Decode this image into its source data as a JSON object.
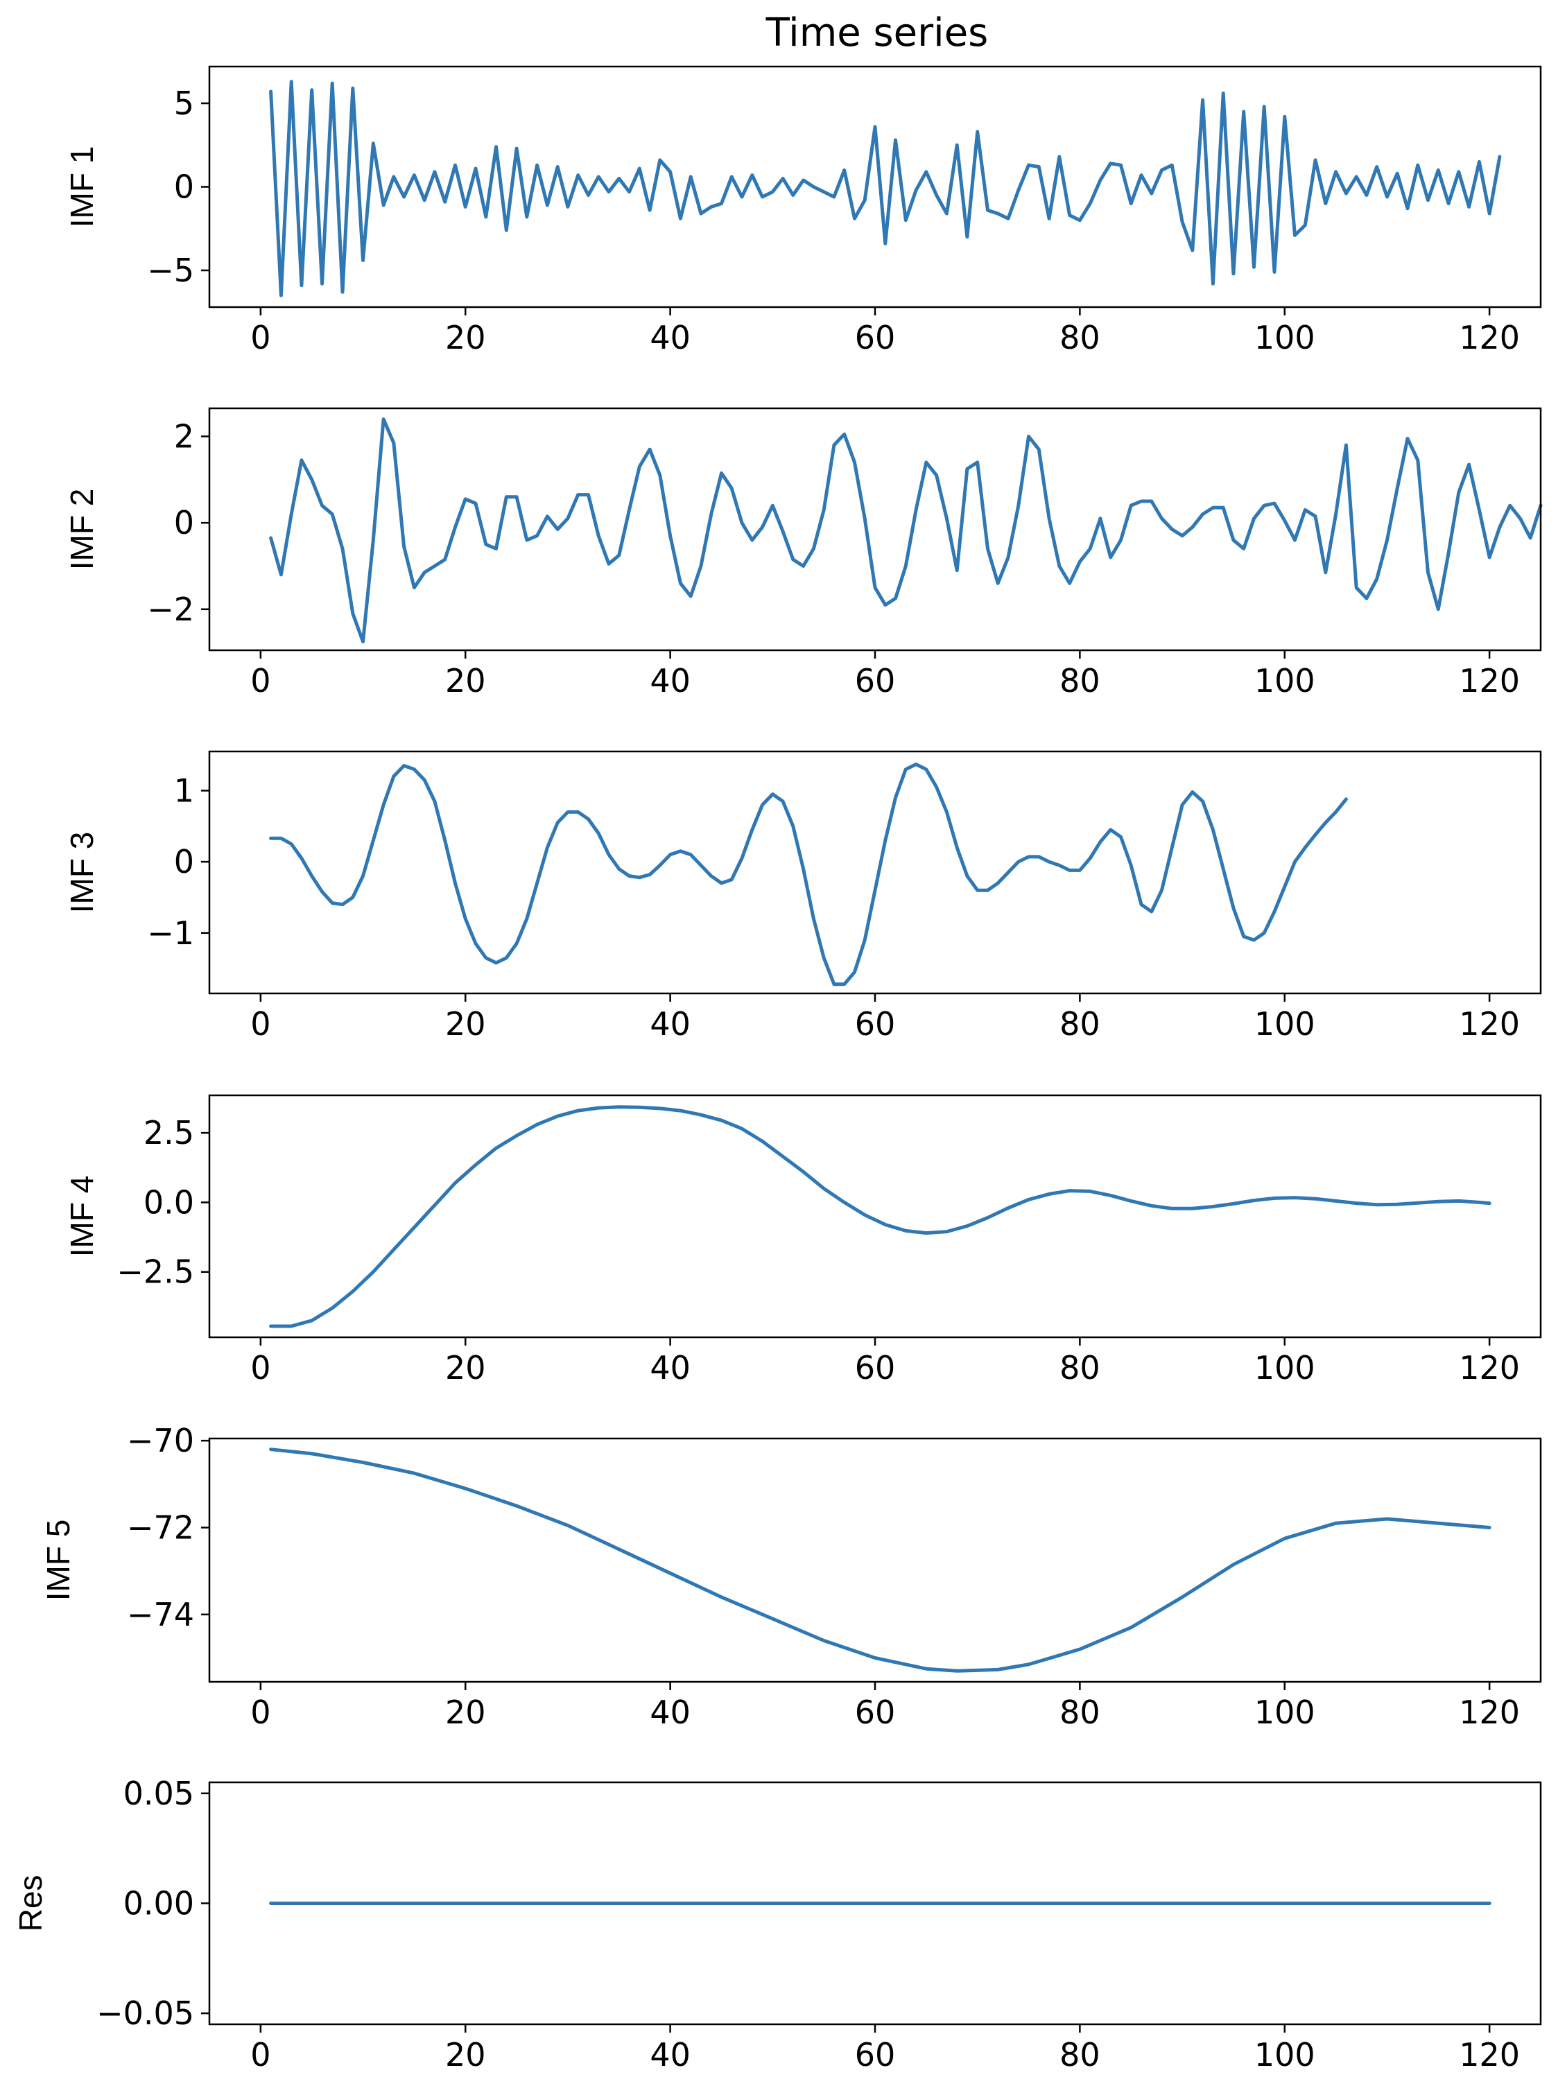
{
  "figure": {
    "title": "Time series",
    "line_color": "#2f78b4"
  },
  "chart_data": [
    {
      "type": "line",
      "ylabel": "IMF 1",
      "xlim": [
        -5,
        125
      ],
      "ylim": [
        -7.2,
        7.2
      ],
      "xticks": [
        0,
        20,
        40,
        60,
        80,
        100,
        120
      ],
      "xtick_labels": [
        "0",
        "20",
        "40",
        "60",
        "80",
        "100",
        "120"
      ],
      "yticks": [
        5,
        0,
        -5
      ],
      "ytick_labels": [
        "5",
        "0",
        "−5"
      ],
      "x_start": 1,
      "values": [
        5.7,
        -6.5,
        6.3,
        -5.9,
        5.8,
        -5.8,
        6.2,
        -6.3,
        5.9,
        -4.4,
        2.6,
        -1.1,
        0.6,
        -0.6,
        0.7,
        -0.8,
        0.9,
        -0.9,
        1.3,
        -1.2,
        1.1,
        -1.8,
        2.4,
        -2.6,
        2.3,
        -1.8,
        1.3,
        -1.1,
        1.2,
        -1.2,
        0.7,
        -0.5,
        0.6,
        -0.3,
        0.5,
        -0.3,
        1.1,
        -1.4,
        1.6,
        0.9,
        -1.9,
        0.6,
        -1.6,
        -1.2,
        -1.0,
        0.6,
        -0.6,
        0.7,
        -0.6,
        -0.3,
        0.5,
        -0.5,
        0.4,
        0.0,
        -0.3,
        -0.6,
        1.0,
        -1.9,
        -0.8,
        3.6,
        -3.4,
        2.8,
        -2.0,
        -0.2,
        0.9,
        -0.5,
        -1.6,
        2.5,
        -3.0,
        3.3,
        -1.4,
        -1.6,
        -1.9,
        -0.2,
        1.3,
        1.2,
        -1.9,
        1.8,
        -1.7,
        -2.0,
        -1.0,
        0.4,
        1.4,
        1.3,
        -1.0,
        0.7,
        -0.4,
        1.0,
        1.3,
        -2.1,
        -3.8,
        5.2,
        -5.8,
        5.6,
        -5.2,
        4.5,
        -4.8,
        4.8,
        -5.1,
        4.2,
        -2.9,
        -2.3,
        1.6,
        -1.0,
        0.9,
        -0.4,
        0.6,
        -0.5,
        1.2,
        -0.6,
        0.8,
        -1.3,
        1.3,
        -0.8,
        1.0,
        -1.0,
        0.9,
        -1.2,
        1.5,
        -1.6,
        1.8
      ]
    },
    {
      "type": "line",
      "ylabel": "IMF 2",
      "xlim": [
        -5,
        125
      ],
      "ylim": [
        -2.95,
        2.65
      ],
      "xticks": [
        0,
        20,
        40,
        60,
        80,
        100,
        120
      ],
      "xtick_labels": [
        "0",
        "20",
        "40",
        "60",
        "80",
        "100",
        "120"
      ],
      "yticks": [
        2,
        0,
        -2
      ],
      "ytick_labels": [
        "2",
        "0",
        "−2"
      ],
      "x_start": 1,
      "values": [
        -0.35,
        -1.2,
        0.2,
        1.45,
        1.0,
        0.4,
        0.2,
        -0.6,
        -2.1,
        -2.75,
        -0.4,
        2.4,
        1.85,
        -0.55,
        -1.5,
        -1.15,
        -1.0,
        -0.85,
        -0.1,
        0.55,
        0.45,
        -0.5,
        -0.6,
        0.6,
        0.6,
        -0.4,
        -0.3,
        0.15,
        -0.15,
        0.1,
        0.65,
        0.65,
        -0.3,
        -0.95,
        -0.75,
        0.3,
        1.3,
        1.7,
        1.1,
        -0.3,
        -1.4,
        -1.7,
        -1.0,
        0.2,
        1.15,
        0.8,
        0.0,
        -0.4,
        -0.1,
        0.4,
        -0.2,
        -0.85,
        -1.0,
        -0.6,
        0.3,
        1.8,
        2.05,
        1.4,
        0.1,
        -1.5,
        -1.9,
        -1.75,
        -1.0,
        0.3,
        1.4,
        1.1,
        0.1,
        -1.1,
        1.25,
        1.4,
        -0.6,
        -1.4,
        -0.8,
        0.4,
        2.0,
        1.7,
        0.1,
        -1.0,
        -1.4,
        -0.9,
        -0.6,
        0.1,
        -0.8,
        -0.4,
        0.4,
        0.5,
        0.5,
        0.1,
        -0.15,
        -0.3,
        -0.1,
        0.2,
        0.35,
        0.35,
        -0.4,
        -0.6,
        0.1,
        0.4,
        0.45,
        0.05,
        -0.4,
        0.3,
        0.15,
        -1.15,
        0.2,
        1.8,
        -1.5,
        -1.75,
        -1.3,
        -0.4,
        0.8,
        1.95,
        1.45,
        -1.15,
        -2.0,
        -0.7,
        0.7,
        1.35,
        0.3,
        -0.8,
        -0.1,
        0.4,
        0.1,
        -0.35,
        0.4
      ]
    },
    {
      "type": "line",
      "ylabel": "IMF 3",
      "xlim": [
        -5,
        125
      ],
      "ylim": [
        -1.85,
        1.55
      ],
      "xticks": [
        0,
        20,
        40,
        60,
        80,
        100,
        120
      ],
      "xtick_labels": [
        "0",
        "20",
        "40",
        "60",
        "80",
        "100",
        "120"
      ],
      "yticks": [
        1,
        0,
        -1
      ],
      "ytick_labels": [
        "1",
        "0",
        "−1"
      ],
      "x_start": 1,
      "values": [
        0.33,
        0.33,
        0.25,
        0.05,
        -0.2,
        -0.42,
        -0.58,
        -0.6,
        -0.5,
        -0.2,
        0.3,
        0.8,
        1.2,
        1.35,
        1.3,
        1.15,
        0.85,
        0.3,
        -0.3,
        -0.8,
        -1.15,
        -1.35,
        -1.42,
        -1.35,
        -1.15,
        -0.8,
        -0.3,
        0.2,
        0.55,
        0.7,
        0.7,
        0.6,
        0.4,
        0.1,
        -0.1,
        -0.2,
        -0.22,
        -0.18,
        -0.05,
        0.1,
        0.15,
        0.1,
        -0.05,
        -0.2,
        -0.3,
        -0.25,
        0.05,
        0.45,
        0.8,
        0.95,
        0.85,
        0.5,
        -0.1,
        -0.8,
        -1.35,
        -1.72,
        -1.72,
        -1.55,
        -1.1,
        -0.4,
        0.3,
        0.9,
        1.3,
        1.37,
        1.3,
        1.05,
        0.7,
        0.2,
        -0.2,
        -0.4,
        -0.4,
        -0.3,
        -0.15,
        0.0,
        0.07,
        0.07,
        0.0,
        -0.05,
        -0.12,
        -0.12,
        0.05,
        0.28,
        0.45,
        0.35,
        -0.05,
        -0.6,
        -0.7,
        -0.4,
        0.2,
        0.8,
        0.98,
        0.85,
        0.45,
        -0.1,
        -0.65,
        -1.05,
        -1.1,
        -1.0,
        -0.7,
        -0.35,
        0.0,
        0.2,
        0.38,
        0.55,
        0.7,
        0.88
      ]
    },
    {
      "type": "line",
      "ylabel": "IMF 4",
      "xlim": [
        -5,
        125
      ],
      "ylim": [
        -4.85,
        3.85
      ],
      "xticks": [
        0,
        20,
        40,
        60,
        80,
        100,
        120
      ],
      "xtick_labels": [
        "0",
        "20",
        "40",
        "60",
        "80",
        "100",
        "120"
      ],
      "yticks": [
        2.5,
        0.0,
        -2.5
      ],
      "ytick_labels": [
        "2.5",
        "0.0",
        "−2.5"
      ],
      "points": [
        [
          1,
          -4.45
        ],
        [
          3,
          -4.45
        ],
        [
          5,
          -4.25
        ],
        [
          7,
          -3.8
        ],
        [
          9,
          -3.2
        ],
        [
          11,
          -2.5
        ],
        [
          13,
          -1.7
        ],
        [
          15,
          -0.9
        ],
        [
          17,
          -0.1
        ],
        [
          19,
          0.7
        ],
        [
          21,
          1.35
        ],
        [
          23,
          1.95
        ],
        [
          25,
          2.4
        ],
        [
          27,
          2.8
        ],
        [
          29,
          3.1
        ],
        [
          31,
          3.3
        ],
        [
          33,
          3.4
        ],
        [
          35,
          3.43
        ],
        [
          37,
          3.42
        ],
        [
          39,
          3.38
        ],
        [
          41,
          3.3
        ],
        [
          43,
          3.15
        ],
        [
          45,
          2.95
        ],
        [
          47,
          2.65
        ],
        [
          49,
          2.2
        ],
        [
          51,
          1.65
        ],
        [
          53,
          1.1
        ],
        [
          55,
          0.5
        ],
        [
          57,
          0.0
        ],
        [
          59,
          -0.45
        ],
        [
          61,
          -0.8
        ],
        [
          63,
          -1.02
        ],
        [
          65,
          -1.1
        ],
        [
          67,
          -1.05
        ],
        [
          69,
          -0.85
        ],
        [
          71,
          -0.55
        ],
        [
          73,
          -0.2
        ],
        [
          75,
          0.1
        ],
        [
          77,
          0.3
        ],
        [
          79,
          0.42
        ],
        [
          81,
          0.4
        ],
        [
          83,
          0.25
        ],
        [
          85,
          0.05
        ],
        [
          87,
          -0.12
        ],
        [
          89,
          -0.22
        ],
        [
          91,
          -0.22
        ],
        [
          93,
          -0.15
        ],
        [
          95,
          -0.05
        ],
        [
          97,
          0.07
        ],
        [
          99,
          0.15
        ],
        [
          101,
          0.17
        ],
        [
          103,
          0.13
        ],
        [
          105,
          0.05
        ],
        [
          107,
          -0.03
        ],
        [
          109,
          -0.08
        ],
        [
          111,
          -0.07
        ],
        [
          113,
          -0.02
        ],
        [
          115,
          0.03
        ],
        [
          117,
          0.05
        ],
        [
          119,
          0.0
        ],
        [
          120,
          -0.03
        ]
      ]
    },
    {
      "type": "line",
      "ylabel": "IMF 5",
      "xlim": [
        -5,
        125
      ],
      "ylim": [
        -75.55,
        -69.95
      ],
      "xticks": [
        0,
        20,
        40,
        60,
        80,
        100,
        120
      ],
      "xtick_labels": [
        "0",
        "20",
        "40",
        "60",
        "80",
        "100",
        "120"
      ],
      "yticks": [
        -70,
        -72,
        -74
      ],
      "ytick_labels": [
        "−70",
        "−72",
        "−74"
      ],
      "points": [
        [
          1,
          -70.2
        ],
        [
          5,
          -70.3
        ],
        [
          10,
          -70.5
        ],
        [
          15,
          -70.75
        ],
        [
          20,
          -71.1
        ],
        [
          25,
          -71.5
        ],
        [
          30,
          -71.95
        ],
        [
          35,
          -72.5
        ],
        [
          40,
          -73.05
        ],
        [
          45,
          -73.6
        ],
        [
          50,
          -74.1
        ],
        [
          55,
          -74.6
        ],
        [
          60,
          -75.0
        ],
        [
          65,
          -75.25
        ],
        [
          68,
          -75.3
        ],
        [
          72,
          -75.27
        ],
        [
          75,
          -75.15
        ],
        [
          80,
          -74.8
        ],
        [
          85,
          -74.3
        ],
        [
          90,
          -73.6
        ],
        [
          95,
          -72.85
        ],
        [
          100,
          -72.25
        ],
        [
          105,
          -71.9
        ],
        [
          110,
          -71.8
        ],
        [
          115,
          -71.9
        ],
        [
          120,
          -72.0
        ]
      ]
    },
    {
      "type": "line",
      "ylabel": "Res",
      "xlim": [
        -5,
        125
      ],
      "ylim": [
        -0.055,
        0.055
      ],
      "xticks": [
        0,
        20,
        40,
        60,
        80,
        100,
        120
      ],
      "xtick_labels": [
        "0",
        "20",
        "40",
        "60",
        "80",
        "100",
        "120"
      ],
      "yticks": [
        0.05,
        0.0,
        -0.05
      ],
      "ytick_labels": [
        "0.05",
        "0.00",
        "−0.05"
      ],
      "points": [
        [
          1,
          0.0
        ],
        [
          120,
          0.0
        ]
      ]
    }
  ]
}
